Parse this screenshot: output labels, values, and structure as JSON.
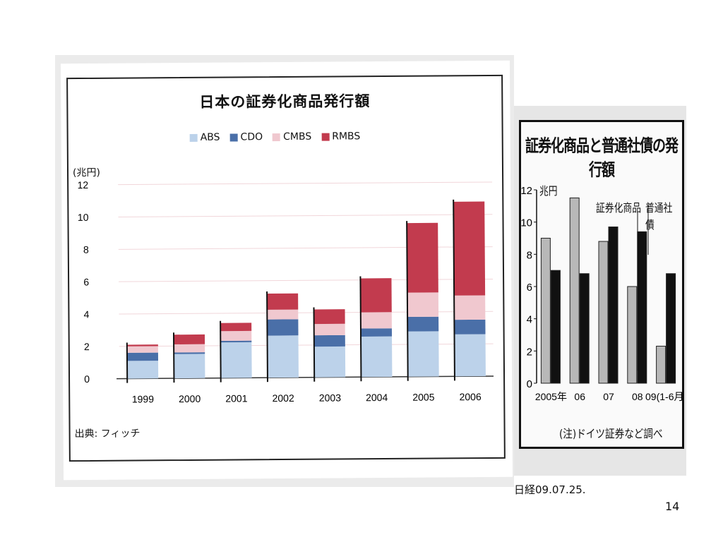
{
  "left_chart": {
    "title": "日本の証券化商品発行額",
    "unit": "(兆円)",
    "source": "出典: フィッチ",
    "colors": {
      "ABS": "#bcd2ea",
      "CDO": "#4a6fa8",
      "CMBS": "#f0c8cf",
      "RMBS": "#c23b4e"
    }
  },
  "right_chart": {
    "title": "証券化商品と普通社債の発行額",
    "unit": "兆円",
    "legend_sec": "証券化商品",
    "legend_bond": "普通社債",
    "note": "(注)ドイツ証券など調べ",
    "colors": {
      "securitized": "#b8b8b8",
      "bonds": "#111111"
    }
  },
  "caption": "日経09.07.25.",
  "page_number": "14",
  "chart_data": [
    {
      "type": "bar",
      "stacked": true,
      "title": "日本の証券化商品発行額",
      "xlabel": "",
      "ylabel": "(兆円)",
      "categories": [
        "1999",
        "2000",
        "2001",
        "2002",
        "2003",
        "2004",
        "2005",
        "2006"
      ],
      "series": [
        {
          "name": "ABS",
          "values": [
            1.1,
            1.5,
            2.2,
            2.6,
            1.9,
            2.5,
            2.8,
            2.6
          ]
        },
        {
          "name": "CDO",
          "values": [
            0.5,
            0.1,
            0.1,
            1.0,
            0.7,
            0.5,
            0.9,
            0.9
          ]
        },
        {
          "name": "CMBS",
          "values": [
            0.4,
            0.5,
            0.6,
            0.6,
            0.7,
            1.0,
            1.5,
            1.5
          ]
        },
        {
          "name": "RMBS",
          "values": [
            0.1,
            0.6,
            0.5,
            1.0,
            0.9,
            2.1,
            4.3,
            5.8
          ]
        }
      ],
      "ylim": [
        0,
        12
      ],
      "yticks": [
        0,
        2,
        4,
        6,
        8,
        10,
        12
      ],
      "grid": true,
      "legend": "top"
    },
    {
      "type": "bar",
      "title": "証券化商品と普通社債の発行額",
      "xlabel": "",
      "ylabel": "兆円",
      "categories": [
        "2005年",
        "06",
        "07",
        "08",
        "09(1-6月)"
      ],
      "series": [
        {
          "name": "証券化商品",
          "values": [
            9.0,
            11.5,
            8.8,
            6.0,
            2.3
          ]
        },
        {
          "name": "普通社債",
          "values": [
            7.0,
            6.8,
            9.7,
            9.4,
            6.8
          ]
        }
      ],
      "ylim": [
        0,
        12
      ],
      "yticks": [
        0,
        2,
        4,
        6,
        8,
        10,
        12
      ],
      "grid": false,
      "legend": "top-right"
    }
  ]
}
